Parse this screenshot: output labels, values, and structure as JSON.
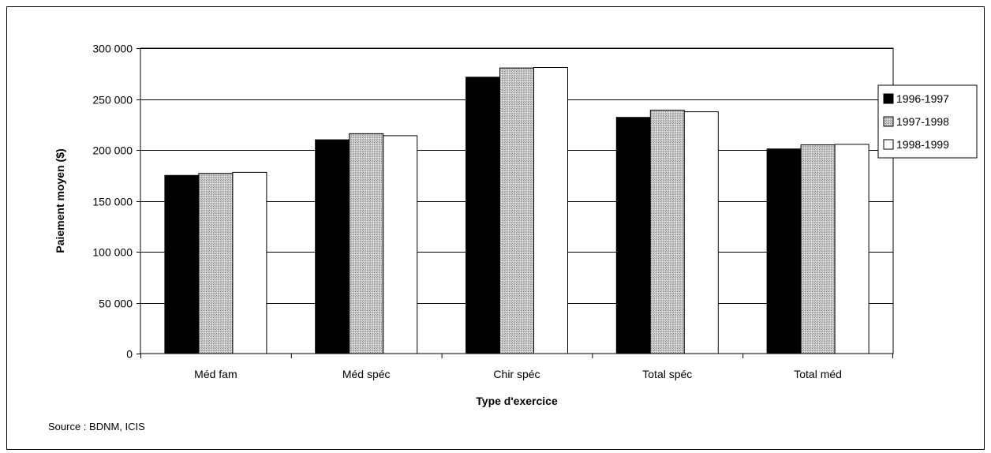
{
  "chart_data": {
    "type": "bar",
    "title": "",
    "xlabel": "Type d'exercice",
    "ylabel": "Paiement moyen ($)",
    "categories": [
      "Méd fam",
      "Méd spéc",
      "Chir spéc",
      "Total spéc",
      "Total méd"
    ],
    "series": [
      {
        "name": "1996-1997",
        "values": [
          175000,
          210000,
          271500,
          232000,
          201000
        ],
        "color": "#000000",
        "pattern": "solid"
      },
      {
        "name": "1997-1998",
        "values": [
          177000,
          216000,
          280500,
          239000,
          205000
        ],
        "color": "#b8b8b8",
        "pattern": "stipple"
      },
      {
        "name": "1998-1999",
        "values": [
          178000,
          214000,
          281000,
          237500,
          205500
        ],
        "color": "#ffffff",
        "pattern": "solid"
      }
    ],
    "ylim": [
      0,
      300000
    ],
    "yticks": [
      0,
      50000,
      100000,
      150000,
      200000,
      250000,
      300000
    ],
    "ytick_labels": [
      "0",
      "50 000",
      "100 000",
      "150 000",
      "200 000",
      "250 000",
      "300 000"
    ],
    "grid": true,
    "legend_position": "right",
    "source": "Source : BDNM, ICIS"
  }
}
